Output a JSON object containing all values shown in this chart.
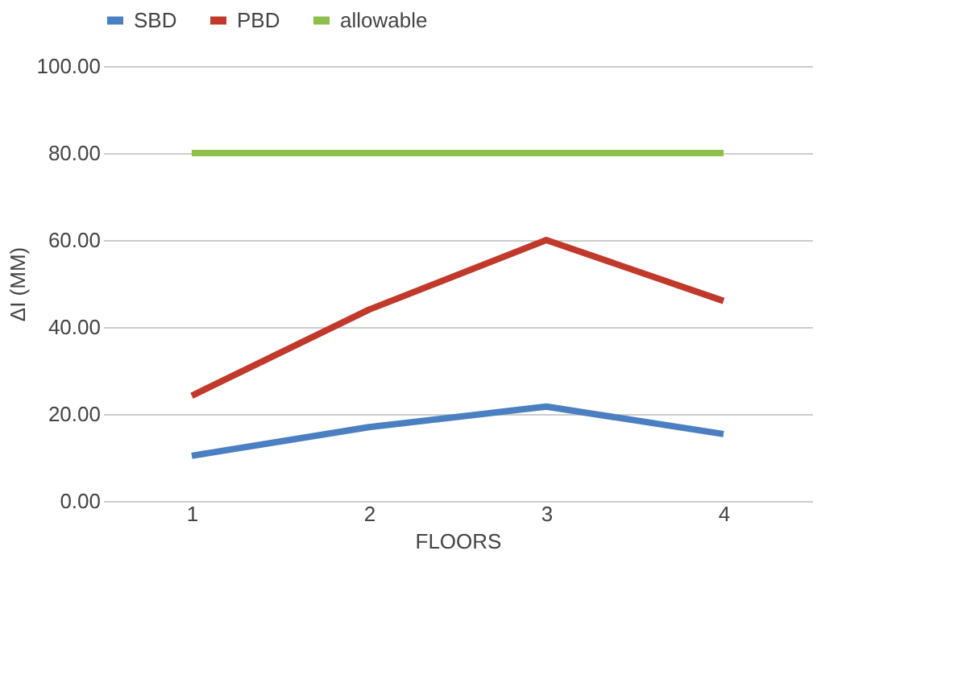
{
  "chart_data": {
    "type": "line",
    "xlabel": "FLOORS",
    "ylabel": "ΔI (MM)",
    "categories": [
      "1",
      "2",
      "3",
      "4"
    ],
    "series": [
      {
        "name": "SBD",
        "color": "#4a7fc1",
        "values": [
          10.4,
          17,
          21.7,
          15.4
        ]
      },
      {
        "name": "PBD",
        "color": "#c0392b",
        "values": [
          24.2,
          44,
          60,
          46
        ]
      },
      {
        "name": "allowable",
        "color": "#8cc04a",
        "values": [
          80,
          80,
          80,
          80
        ]
      }
    ],
    "ylim": [
      0,
      100
    ],
    "yticks": [
      {
        "value": 0,
        "label": "0.00"
      },
      {
        "value": 20,
        "label": "20.00"
      },
      {
        "value": 40,
        "label": "40.00"
      },
      {
        "value": 60,
        "label": "60.00"
      },
      {
        "value": 80,
        "label": "80.00"
      },
      {
        "value": 100,
        "label": "100.00"
      }
    ],
    "grid": "y",
    "legend": "top",
    "marker": "none",
    "line_style": "solid"
  }
}
